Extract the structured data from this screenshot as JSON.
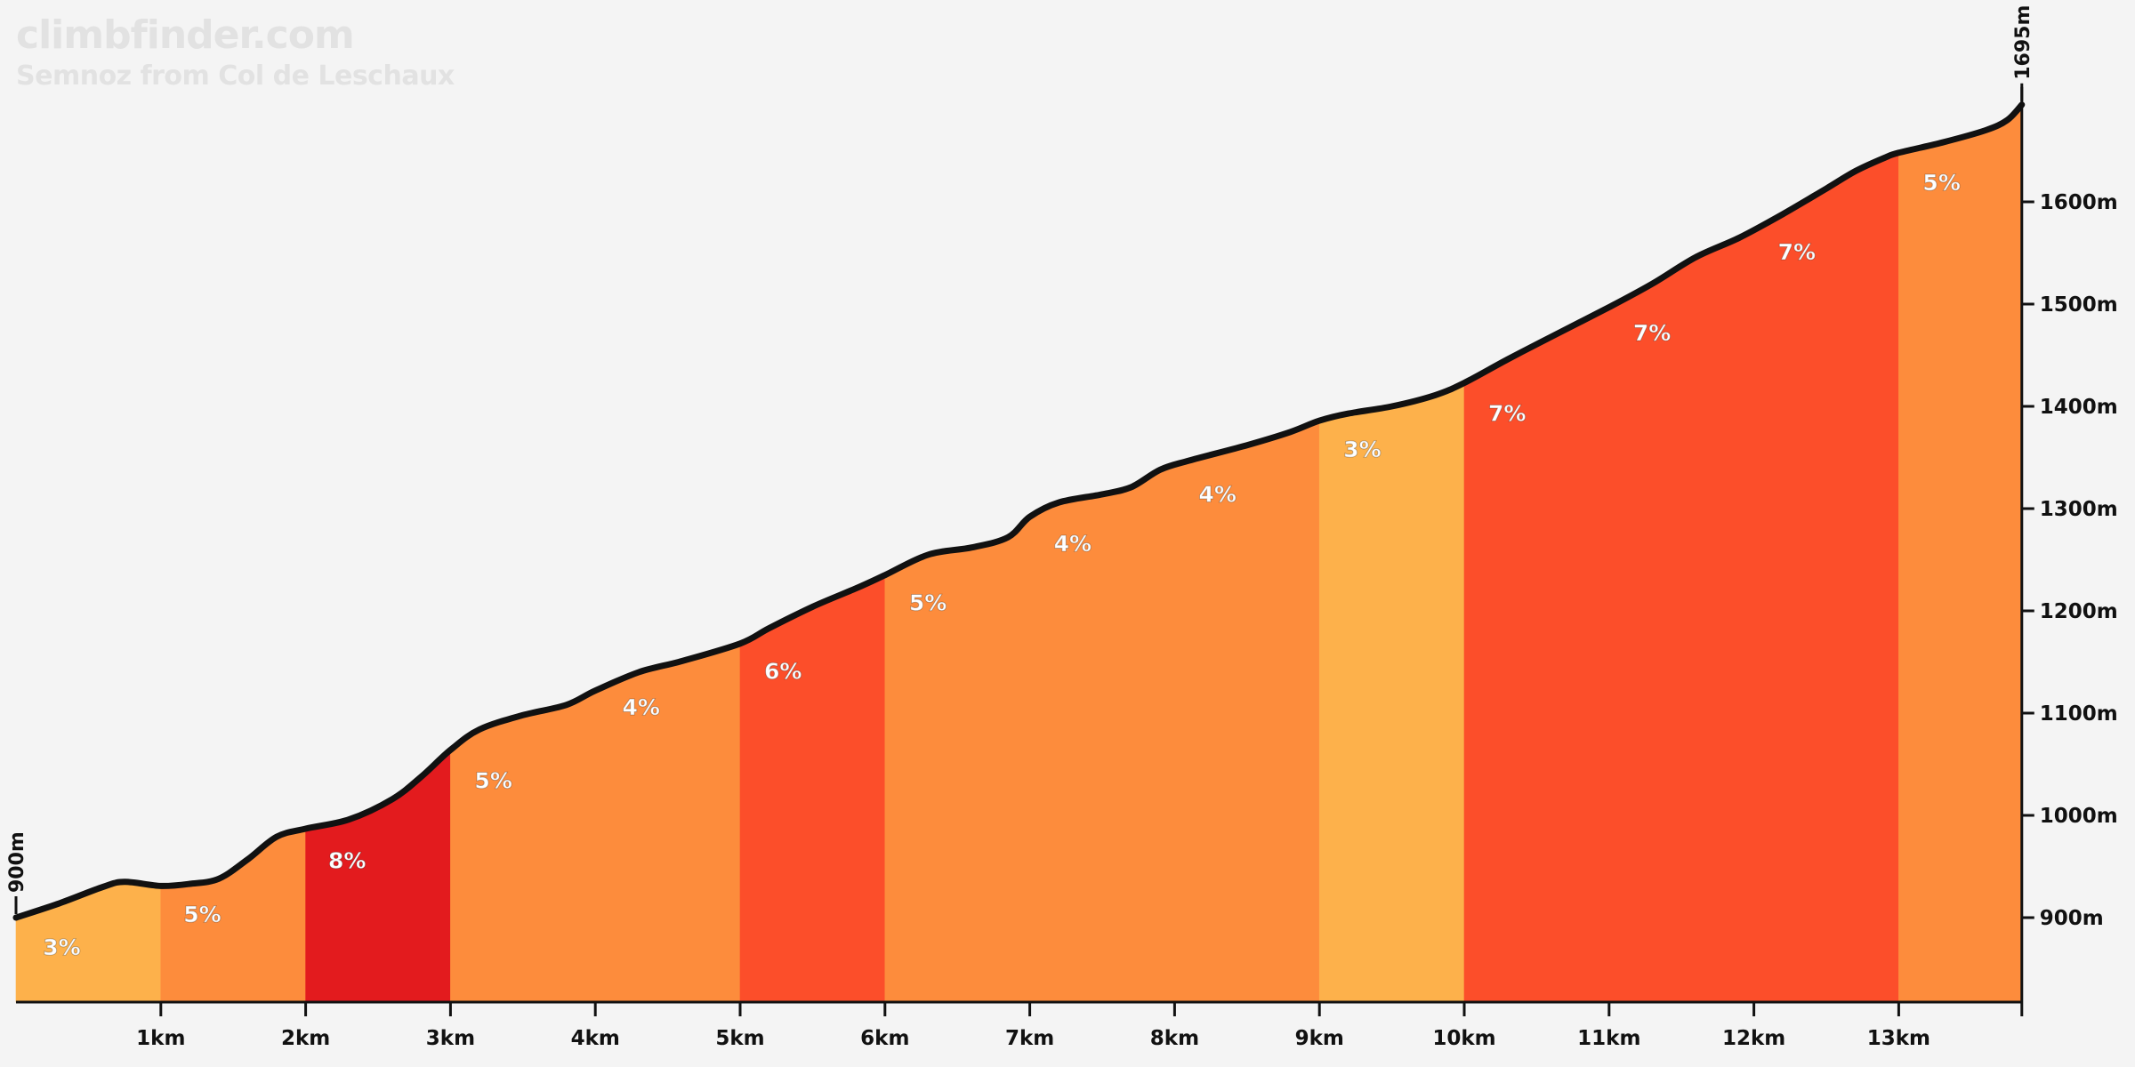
{
  "watermark": {
    "site": "climbfinder.com",
    "climb_name": "Semnoz from Col de Leschaux"
  },
  "chart_data": {
    "type": "area",
    "title": "",
    "xlabel": "",
    "ylabel": "",
    "x_unit": "km",
    "y_unit": "m",
    "xlim": [
      0,
      13.85
    ],
    "ylim": [
      815,
      1695
    ],
    "grid": false,
    "start_label": "900m",
    "end_label": "1695m",
    "x_ticks": [
      {
        "value": 1,
        "label": "1km"
      },
      {
        "value": 2,
        "label": "2km"
      },
      {
        "value": 3,
        "label": "3km"
      },
      {
        "value": 4,
        "label": "4km"
      },
      {
        "value": 5,
        "label": "5km"
      },
      {
        "value": 6,
        "label": "6km"
      },
      {
        "value": 7,
        "label": "7km"
      },
      {
        "value": 8,
        "label": "8km"
      },
      {
        "value": 9,
        "label": "9km"
      },
      {
        "value": 10,
        "label": "10km"
      },
      {
        "value": 11,
        "label": "11km"
      },
      {
        "value": 12,
        "label": "12km"
      },
      {
        "value": 13,
        "label": "13km"
      }
    ],
    "y_ticks": [
      {
        "value": 900,
        "label": "900m"
      },
      {
        "value": 1000,
        "label": "1000m"
      },
      {
        "value": 1100,
        "label": "1100m"
      },
      {
        "value": 1200,
        "label": "1200m"
      },
      {
        "value": 1300,
        "label": "1300m"
      },
      {
        "value": 1400,
        "label": "1400m"
      },
      {
        "value": 1500,
        "label": "1500m"
      },
      {
        "value": 1600,
        "label": "1600m"
      }
    ],
    "segments": [
      {
        "start": 0,
        "end": 1,
        "grade_label": "3%",
        "color": "#fdb14b"
      },
      {
        "start": 1,
        "end": 2,
        "grade_label": "5%",
        "color": "#fd8c3c"
      },
      {
        "start": 2,
        "end": 3,
        "grade_label": "8%",
        "color": "#e31b1e"
      },
      {
        "start": 3,
        "end": 5,
        "grade_label": "5%",
        "color": "#fd8c3c"
      },
      {
        "start": 3,
        "end": 5,
        "grade_label": "4%",
        "color": "#fd8c3c"
      },
      {
        "start": 5,
        "end": 6,
        "grade_label": "6%",
        "color": "#fc4e2a"
      },
      {
        "start": 6,
        "end": 9,
        "grade_label": "5%",
        "color": "#fd8c3c"
      },
      {
        "start": 6,
        "end": 9,
        "grade_label": "4%",
        "color": "#fd8c3c"
      },
      {
        "start": 6,
        "end": 9,
        "grade_label": "4%",
        "color": "#fd8c3c"
      },
      {
        "start": 9,
        "end": 10,
        "grade_label": "3%",
        "color": "#fdb14b"
      },
      {
        "start": 10,
        "end": 13,
        "grade_label": "7%",
        "color": "#fc4e2a"
      },
      {
        "start": 10,
        "end": 13,
        "grade_label": "7%",
        "color": "#fc4e2a"
      },
      {
        "start": 10,
        "end": 13,
        "grade_label": "7%",
        "color": "#fc4e2a"
      },
      {
        "start": 13,
        "end": 13.85,
        "grade_label": "5%",
        "color": "#fd8c3c"
      }
    ],
    "fills": [
      {
        "start": 0,
        "end": 1,
        "color": "#fdb14b"
      },
      {
        "start": 1,
        "end": 2,
        "color": "#fd8c3c"
      },
      {
        "start": 2,
        "end": 3,
        "color": "#e31b1e"
      },
      {
        "start": 3,
        "end": 5,
        "color": "#fd8c3c"
      },
      {
        "start": 5,
        "end": 6,
        "color": "#fc4e2a"
      },
      {
        "start": 6,
        "end": 9,
        "color": "#fd8c3c"
      },
      {
        "start": 9,
        "end": 10,
        "color": "#fdb14b"
      },
      {
        "start": 10,
        "end": 13,
        "color": "#fc4e2a"
      },
      {
        "start": 13,
        "end": 13.85,
        "color": "#fd8c3c"
      }
    ],
    "grade_labels": [
      {
        "km": 0.1,
        "elev": 900,
        "label": "3%"
      },
      {
        "km": 1.07,
        "elev": 932,
        "label": "5%"
      },
      {
        "km": 2.07,
        "elev": 985,
        "label": "8%"
      },
      {
        "km": 3.08,
        "elev": 1063,
        "label": "5%"
      },
      {
        "km": 4.1,
        "elev": 1135,
        "label": "4%"
      },
      {
        "km": 5.08,
        "elev": 1170,
        "label": "6%"
      },
      {
        "km": 6.08,
        "elev": 1237,
        "label": "5%"
      },
      {
        "km": 7.08,
        "elev": 1295,
        "label": "4%"
      },
      {
        "km": 8.08,
        "elev": 1343,
        "label": "4%"
      },
      {
        "km": 9.08,
        "elev": 1387,
        "label": "3%"
      },
      {
        "km": 10.08,
        "elev": 1422,
        "label": "7%"
      },
      {
        "km": 11.08,
        "elev": 1501,
        "label": "7%"
      },
      {
        "km": 12.08,
        "elev": 1580,
        "label": "7%"
      },
      {
        "km": 13.08,
        "elev": 1648,
        "label": "5%"
      }
    ],
    "profile": [
      [
        0,
        900
      ],
      [
        0.3,
        914
      ],
      [
        0.6,
        930
      ],
      [
        0.75,
        935
      ],
      [
        1.0,
        931
      ],
      [
        1.2,
        933
      ],
      [
        1.4,
        938
      ],
      [
        1.6,
        957
      ],
      [
        1.8,
        979
      ],
      [
        2.0,
        987
      ],
      [
        2.3,
        996
      ],
      [
        2.6,
        1016
      ],
      [
        2.8,
        1038
      ],
      [
        3.0,
        1064
      ],
      [
        3.2,
        1084
      ],
      [
        3.5,
        1098
      ],
      [
        3.8,
        1108
      ],
      [
        4.0,
        1122
      ],
      [
        4.3,
        1140
      ],
      [
        4.6,
        1151
      ],
      [
        5.0,
        1168
      ],
      [
        5.2,
        1183
      ],
      [
        5.5,
        1204
      ],
      [
        5.8,
        1222
      ],
      [
        6.0,
        1235
      ],
      [
        6.3,
        1255
      ],
      [
        6.6,
        1262
      ],
      [
        6.85,
        1272
      ],
      [
        7.0,
        1292
      ],
      [
        7.2,
        1306
      ],
      [
        7.5,
        1314
      ],
      [
        7.7,
        1321
      ],
      [
        7.9,
        1338
      ],
      [
        8.1,
        1347
      ],
      [
        8.5,
        1362
      ],
      [
        8.8,
        1375
      ],
      [
        9.0,
        1386
      ],
      [
        9.2,
        1393
      ],
      [
        9.5,
        1400
      ],
      [
        9.8,
        1411
      ],
      [
        10.0,
        1423
      ],
      [
        10.3,
        1446
      ],
      [
        10.6,
        1468
      ],
      [
        11.0,
        1497
      ],
      [
        11.3,
        1520
      ],
      [
        11.6,
        1546
      ],
      [
        11.9,
        1565
      ],
      [
        12.2,
        1588
      ],
      [
        12.5,
        1613
      ],
      [
        12.7,
        1630
      ],
      [
        12.9,
        1643
      ],
      [
        13.0,
        1648
      ],
      [
        13.3,
        1658
      ],
      [
        13.6,
        1670
      ],
      [
        13.75,
        1680
      ],
      [
        13.85,
        1695
      ]
    ]
  }
}
